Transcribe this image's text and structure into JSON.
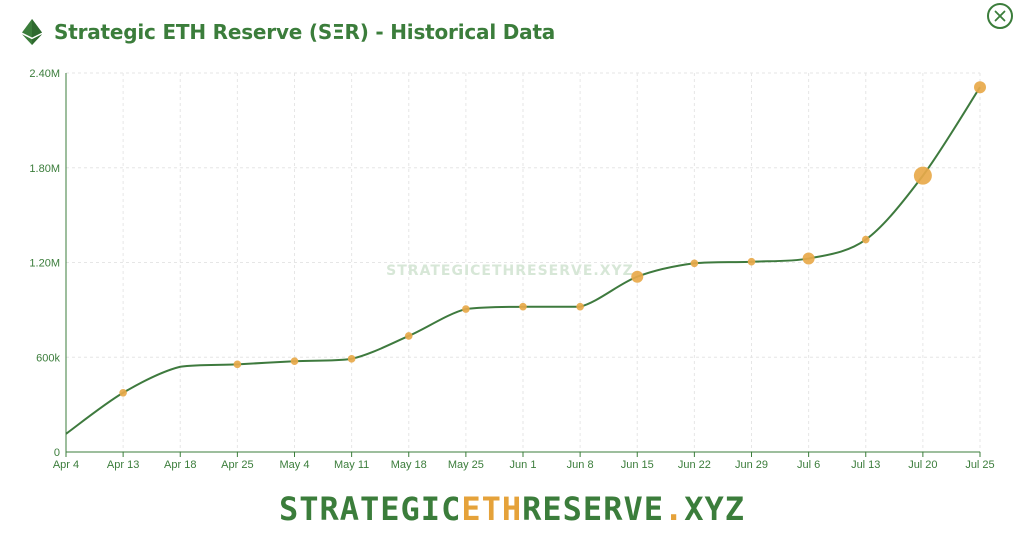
{
  "header": {
    "title": "Strategic ETH Reserve (SΞR) - Historical Data",
    "logo_icon": "ethereum-diamond-icon",
    "close_icon": "close-icon"
  },
  "colors": {
    "accent_green": "#3b7d3b",
    "line": "#3e7a3e",
    "marker": "#e8a94a",
    "grid": "#e6e6e6",
    "watermark": "#d7e7d7"
  },
  "watermark": "STRATEGICETHRESERVE.XYZ",
  "footer": {
    "part1": "STRATEGIC",
    "part2": "ETH",
    "part3": "RESERVE",
    "part4": ".",
    "part5": "XYZ"
  },
  "chart_data": {
    "type": "line",
    "title": "Strategic ETH Reserve (SΞR) - Historical Data",
    "xlabel": "",
    "ylabel": "",
    "x_ticks": [
      "Apr 4",
      "Apr 13",
      "Apr 18",
      "Apr 25",
      "May 4",
      "May 11",
      "May 18",
      "May 25",
      "Jun 1",
      "Jun 8",
      "Jun 15",
      "Jun 22",
      "Jun 29",
      "Jul 6",
      "Jul 13",
      "Jul 20",
      "Jul 25"
    ],
    "y_ticks": [
      "0",
      "600k",
      "1.20M",
      "1.80M",
      "2.40M"
    ],
    "ylim": [
      0,
      2400000
    ],
    "grid": true,
    "legend": "none",
    "series": [
      {
        "values": [
          {
            "x": "Apr 4",
            "y": 115000
          },
          {
            "x": "Apr 13",
            "y": 375000
          },
          {
            "x": "Apr 18",
            "y": 540000
          },
          {
            "x": "Apr 25",
            "y": 555000
          },
          {
            "x": "May 4",
            "y": 575000
          },
          {
            "x": "May 11",
            "y": 590000
          },
          {
            "x": "May 18",
            "y": 735000
          },
          {
            "x": "May 25",
            "y": 905000
          },
          {
            "x": "Jun 1",
            "y": 920000
          },
          {
            "x": "Jun 8",
            "y": 920000
          },
          {
            "x": "Jun 15",
            "y": 1110000
          },
          {
            "x": "Jun 22",
            "y": 1195000
          },
          {
            "x": "Jun 29",
            "y": 1205000
          },
          {
            "x": "Jul 6",
            "y": 1225000
          },
          {
            "x": "Jul 13",
            "y": 1345000
          },
          {
            "x": "Jul 20",
            "y": 1750000
          },
          {
            "x": "Jul 25",
            "y": 2310000
          }
        ],
        "markers": [
          {
            "x": "Apr 13",
            "y": 375000,
            "size": "small"
          },
          {
            "x": "Apr 25",
            "y": 555000,
            "size": "small"
          },
          {
            "x": "May 4",
            "y": 575000,
            "size": "small"
          },
          {
            "x": "May 11",
            "y": 590000,
            "size": "small"
          },
          {
            "x": "May 18",
            "y": 735000,
            "size": "small"
          },
          {
            "x": "May 25",
            "y": 905000,
            "size": "small"
          },
          {
            "x": "Jun 1",
            "y": 920000,
            "size": "small"
          },
          {
            "x": "Jun 8",
            "y": 920000,
            "size": "small"
          },
          {
            "x": "Jun 15",
            "y": 1110000,
            "size": "medium"
          },
          {
            "x": "Jun 22",
            "y": 1195000,
            "size": "small"
          },
          {
            "x": "Jun 29",
            "y": 1205000,
            "size": "small"
          },
          {
            "x": "Jul 6",
            "y": 1225000,
            "size": "medium"
          },
          {
            "x": "Jul 13",
            "y": 1345000,
            "size": "small"
          },
          {
            "x": "Jul 20",
            "y": 1750000,
            "size": "large"
          },
          {
            "x": "Jul 25",
            "y": 2310000,
            "size": "medium"
          }
        ]
      }
    ]
  }
}
